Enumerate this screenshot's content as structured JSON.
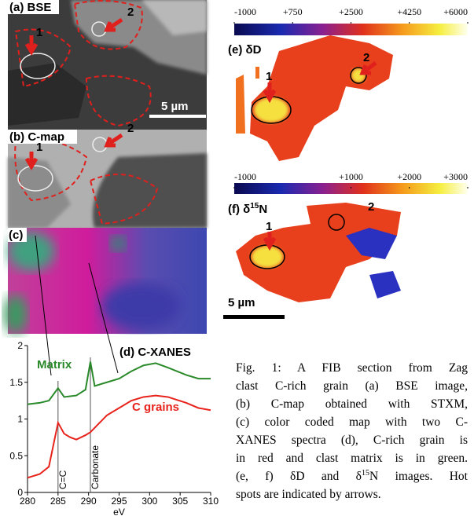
{
  "panels": {
    "a": {
      "label": "(a) BSE",
      "marker1": "1",
      "marker2": "2",
      "scale_bar": "5 µm"
    },
    "b": {
      "label": "(b) C-map",
      "marker1": "1",
      "marker2": "2"
    },
    "c": {
      "label": "(c)"
    },
    "e": {
      "label": "(e) δD",
      "marker1": "1",
      "marker2": "2",
      "colorbar": {
        "range": [
          -1000,
          6000
        ],
        "ticks": [
          -1000,
          {
            "value": 750,
            "label": "+750"
          },
          {
            "value": 2500,
            "label": "+2500"
          },
          {
            "value": 4250,
            "label": "+4250"
          },
          {
            "value": 6000,
            "label": "+6000"
          }
        ]
      }
    },
    "f": {
      "label_prefix": "(f) δ",
      "label_sup": "15",
      "label_suffix": "N",
      "marker1": "1",
      "marker2": "2",
      "scale_bar": "5 µm",
      "colorbar": {
        "range": [
          -1000,
          3000
        ],
        "ticks": [
          -1000,
          {
            "value": 1000,
            "label": "+1000"
          },
          {
            "value": 2000,
            "label": "+2000"
          },
          {
            "value": 3000,
            "label": "+3000"
          }
        ]
      }
    }
  },
  "chart_data": {
    "type": "line",
    "title": "(d) C-XANES",
    "x_label": "eV",
    "x": [
      280,
      282,
      283.5,
      285,
      286,
      287,
      288,
      289.5,
      290.3,
      291,
      293,
      295,
      297,
      299,
      301,
      303,
      306,
      308,
      310
    ],
    "series": [
      {
        "name": "Matrix",
        "color": "#2a8a2a",
        "values": [
          1.2,
          1.22,
          1.25,
          1.42,
          1.3,
          1.31,
          1.32,
          1.4,
          1.78,
          1.45,
          1.5,
          1.55,
          1.65,
          1.73,
          1.76,
          1.7,
          1.6,
          1.55,
          1.55
        ]
      },
      {
        "name": "C grains",
        "color": "#e8231c",
        "values": [
          0.2,
          0.25,
          0.35,
          0.95,
          0.8,
          0.75,
          0.72,
          0.78,
          0.82,
          0.88,
          1.05,
          1.15,
          1.25,
          1.3,
          1.32,
          1.3,
          1.22,
          1.15,
          1.12
        ]
      }
    ],
    "xlim": [
      280,
      310
    ],
    "xticks": [
      280,
      285,
      290,
      295,
      300,
      305,
      310
    ],
    "ylim": [
      0,
      2
    ],
    "yticks": [
      0,
      0.5,
      1,
      1.5,
      2
    ],
    "annotations": [
      {
        "text": "C=C",
        "x": 285
      },
      {
        "text": "Carbonate",
        "x": 290.3
      }
    ]
  },
  "caption": {
    "lines": [
      "Fig. 1: A FIB section from Zag",
      "clast C-rich grain (a) BSE image,",
      "(b) C-map obtained with STXM,",
      "(c) color coded map with two C-",
      "XANES spectra (d), C-rich grain is",
      "in red and clast matrix is in green."
    ],
    "line7": {
      "before": "(e, f) δD and δ",
      "sup": "15",
      "after": "N images. Hot"
    },
    "last": "spots are indicated by arrows."
  }
}
